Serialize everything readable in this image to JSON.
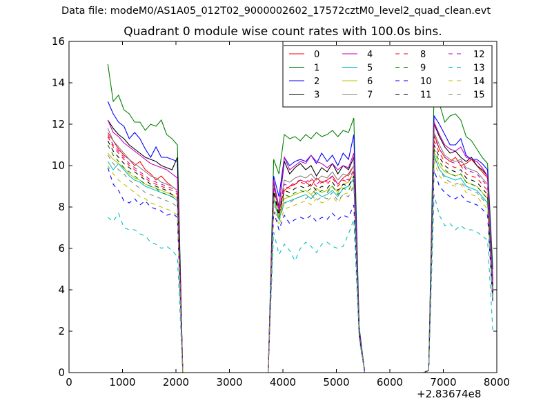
{
  "chart_data": {
    "type": "line",
    "suptitle": "Data file: modeM0/AS1A05_012T02_9000002602_17572cztM0_level2_quad_clean.evt",
    "title": "Quadrant 0 module wise count rates with 100.0s bins.",
    "xlabel": "",
    "ylabel": "",
    "x_offset_label": "+2.83674e8",
    "xlim": [
      0,
      8000
    ],
    "ylim": [
      0,
      16
    ],
    "x_ticks": [
      "0",
      "1000",
      "2000",
      "3000",
      "4000",
      "5000",
      "6000",
      "7000",
      "8000"
    ],
    "y_ticks": [
      "0",
      "2",
      "4",
      "6",
      "8",
      "10",
      "12",
      "14",
      "16"
    ],
    "legend_position": "top-right",
    "legend_columns": 4,
    "segment_times": [
      [
        727,
        827,
        927,
        1027,
        1127,
        1227,
        1327,
        1427,
        1527,
        1627,
        1727,
        1827,
        1927,
        2027,
        2127
      ],
      [
        3727,
        3827,
        3927,
        4027,
        4127,
        4227,
        4327,
        4427,
        4527,
        4627,
        4727,
        4827,
        4927,
        5027,
        5127,
        5227,
        5327,
        5427,
        5527
      ],
      [
        6727,
        6827,
        6927,
        7027,
        7127,
        7227,
        7327,
        7427,
        7527,
        7627,
        7727,
        7827,
        7927
      ]
    ],
    "zero_gaps": [
      [
        2127,
        3727
      ],
      [
        5527,
        6627
      ]
    ],
    "series": [
      {
        "name": "0",
        "color": "#ff0000",
        "dash": false,
        "segments": [
          [
            11.6,
            11.2,
            10.8,
            10.5,
            10.3,
            10.0,
            10.2,
            9.8,
            9.6,
            9.3,
            9.5,
            9.2,
            9.0,
            8.8,
            0.1
          ],
          [
            0.1,
            9.0,
            7.8,
            8.8,
            9.0,
            9.1,
            9.3,
            9.2,
            9.0,
            9.4,
            9.2,
            9.3,
            9.5,
            9.1,
            9.4,
            9.6,
            10.0,
            2.0,
            0.1
          ],
          [
            0.1,
            11.5,
            10.8,
            10.4,
            10.2,
            10.4,
            10.0,
            10.1,
            10.3,
            10.0,
            9.7,
            9.4,
            4.0
          ]
        ]
      },
      {
        "name": "1",
        "color": "#008000",
        "dash": false,
        "segments": [
          [
            14.9,
            13.1,
            13.4,
            12.7,
            12.5,
            12.1,
            12.1,
            11.7,
            12.0,
            11.9,
            12.2,
            11.5,
            11.3,
            11.0,
            0.1
          ],
          [
            0.1,
            10.3,
            9.6,
            11.5,
            11.3,
            11.4,
            11.2,
            11.5,
            11.3,
            11.6,
            11.4,
            11.5,
            11.7,
            11.4,
            11.7,
            11.6,
            12.3,
            2.2,
            0.1
          ],
          [
            0.1,
            13.6,
            13.0,
            12.1,
            12.4,
            12.5,
            12.2,
            11.4,
            11.2,
            10.8,
            10.4,
            10.1,
            5.0
          ]
        ]
      },
      {
        "name": "2",
        "color": "#0000ff",
        "dash": false,
        "segments": [
          [
            13.1,
            12.5,
            12.1,
            11.9,
            11.3,
            11.6,
            11.3,
            10.8,
            10.4,
            10.9,
            10.4,
            10.4,
            10.3,
            10.2,
            0.1
          ],
          [
            0.1,
            9.5,
            8.5,
            10.4,
            10.0,
            10.2,
            10.3,
            10.2,
            10.5,
            10.1,
            10.6,
            10.2,
            10.5,
            10.0,
            10.6,
            10.3,
            11.5,
            2.1,
            0.1
          ],
          [
            0.1,
            12.4,
            12.0,
            11.5,
            11.0,
            11.0,
            11.3,
            10.5,
            10.3,
            10.3,
            10.1,
            9.8,
            4.5
          ]
        ]
      },
      {
        "name": "3",
        "color": "#000000",
        "dash": false,
        "segments": [
          [
            12.2,
            11.8,
            11.5,
            11.3,
            11.0,
            10.8,
            10.6,
            10.4,
            10.3,
            10.2,
            10.0,
            9.9,
            9.8,
            10.4,
            0.1
          ],
          [
            0.1,
            9.2,
            8.0,
            10.2,
            9.6,
            9.9,
            10.1,
            9.8,
            10.0,
            9.5,
            9.9,
            9.7,
            10.1,
            9.6,
            10.0,
            9.8,
            10.4,
            1.9,
            0.1
          ],
          [
            0.1,
            12.0,
            11.4,
            10.9,
            10.6,
            10.7,
            10.4,
            10.2,
            10.4,
            10.0,
            9.8,
            9.5,
            4.2
          ]
        ]
      },
      {
        "name": "4",
        "color": "#bf00bf",
        "dash": false,
        "segments": [
          [
            12.2,
            11.6,
            11.4,
            11.1,
            10.9,
            10.7,
            10.5,
            10.3,
            10.1,
            10.0,
            9.9,
            9.8,
            9.6,
            9.4,
            0.1
          ],
          [
            0.1,
            9.3,
            7.9,
            10.4,
            9.8,
            10.0,
            10.2,
            10.1,
            10.5,
            10.2,
            10.1,
            9.9,
            10.1,
            9.8,
            10.0,
            9.9,
            10.6,
            2.0,
            0.1
          ],
          [
            0.1,
            12.1,
            11.5,
            11.0,
            10.8,
            10.7,
            10.9,
            10.4,
            10.3,
            10.2,
            9.9,
            9.5,
            4.3
          ]
        ]
      },
      {
        "name": "5",
        "color": "#00bfbf",
        "dash": false,
        "segments": [
          [
            10.2,
            9.8,
            10.1,
            9.8,
            9.5,
            9.3,
            9.2,
            9.0,
            8.9,
            8.8,
            8.7,
            8.6,
            8.5,
            8.3,
            0.1
          ],
          [
            0.1,
            8.4,
            7.4,
            8.2,
            8.3,
            8.4,
            8.5,
            8.6,
            8.4,
            8.7,
            8.5,
            8.6,
            8.8,
            8.5,
            8.9,
            9.0,
            9.4,
            1.8,
            0.1
          ],
          [
            0.1,
            10.5,
            9.8,
            9.5,
            9.4,
            9.3,
            9.4,
            9.0,
            8.9,
            8.8,
            8.5,
            8.2,
            3.5
          ]
        ]
      },
      {
        "name": "6",
        "color": "#bfbf00",
        "dash": false,
        "segments": [
          [
            10.6,
            10.3,
            10.1,
            9.9,
            9.6,
            9.4,
            9.3,
            9.1,
            9.0,
            8.9,
            8.8,
            8.7,
            8.6,
            8.4,
            0.1
          ],
          [
            0.1,
            8.6,
            7.5,
            8.4,
            8.5,
            8.6,
            8.7,
            8.8,
            8.6,
            8.9,
            8.7,
            8.8,
            9.0,
            8.7,
            9.1,
            9.2,
            9.7,
            1.8,
            0.1
          ],
          [
            0.1,
            10.7,
            10.0,
            9.7,
            9.6,
            9.5,
            9.6,
            9.2,
            9.1,
            9.0,
            8.7,
            8.4,
            3.6
          ]
        ]
      },
      {
        "name": "7",
        "color": "#808080",
        "dash": false,
        "segments": [
          [
            11.8,
            11.2,
            10.9,
            10.6,
            10.3,
            10.1,
            9.9,
            9.7,
            9.5,
            9.4,
            9.2,
            9.1,
            9.0,
            8.8,
            0.1
          ],
          [
            0.1,
            9.0,
            7.8,
            9.3,
            9.2,
            9.4,
            9.5,
            9.4,
            9.6,
            9.3,
            9.5,
            9.4,
            9.7,
            9.3,
            9.6,
            9.5,
            10.0,
            1.9,
            0.1
          ],
          [
            0.1,
            11.6,
            11.0,
            10.5,
            10.3,
            10.2,
            10.3,
            9.9,
            9.8,
            9.7,
            9.4,
            9.1,
            3.9
          ]
        ]
      },
      {
        "name": "8",
        "color": "#ff0000",
        "dash": true,
        "segments": [
          [
            11.4,
            10.9,
            10.6,
            10.3,
            10.0,
            9.8,
            9.6,
            9.4,
            9.2,
            9.1,
            9.0,
            8.9,
            8.8,
            8.6,
            0.1
          ],
          [
            0.1,
            8.9,
            7.7,
            9.0,
            8.9,
            9.1,
            9.2,
            9.1,
            9.3,
            9.0,
            9.2,
            9.1,
            9.4,
            9.0,
            9.3,
            9.2,
            9.7,
            1.9,
            0.1
          ],
          [
            0.1,
            11.2,
            10.6,
            10.2,
            10.0,
            9.9,
            10.0,
            9.6,
            9.5,
            9.4,
            9.1,
            8.8,
            3.8
          ]
        ]
      },
      {
        "name": "9",
        "color": "#008000",
        "dash": true,
        "segments": [
          [
            11.0,
            10.5,
            10.2,
            9.9,
            9.7,
            9.5,
            9.3,
            9.1,
            9.0,
            8.9,
            8.7,
            8.6,
            8.5,
            8.3,
            0.1
          ],
          [
            0.1,
            8.7,
            7.5,
            8.6,
            8.5,
            8.7,
            8.8,
            8.7,
            8.9,
            8.6,
            8.8,
            8.7,
            9.0,
            8.6,
            8.9,
            8.8,
            9.3,
            1.8,
            0.1
          ],
          [
            0.1,
            10.8,
            10.2,
            9.8,
            9.6,
            9.5,
            9.6,
            9.2,
            9.1,
            9.0,
            8.7,
            8.4,
            3.7
          ]
        ]
      },
      {
        "name": "10",
        "color": "#0000ff",
        "dash": true,
        "segments": [
          [
            9.9,
            9.1,
            8.8,
            8.3,
            8.2,
            8.4,
            8.1,
            8.3,
            8.0,
            7.9,
            7.8,
            7.6,
            7.7,
            7.5,
            0.1
          ],
          [
            0.1,
            7.8,
            6.9,
            7.6,
            7.2,
            7.4,
            7.5,
            7.4,
            7.6,
            7.3,
            7.5,
            7.4,
            7.7,
            7.4,
            7.6,
            7.5,
            8.1,
            1.7,
            0.1
          ],
          [
            0.1,
            9.8,
            9.0,
            8.7,
            8.5,
            8.4,
            8.6,
            8.3,
            8.2,
            8.1,
            7.9,
            7.6,
            3.3
          ]
        ]
      },
      {
        "name": "11",
        "color": "#000000",
        "dash": true,
        "segments": [
          [
            11.2,
            10.7,
            10.4,
            10.1,
            9.9,
            9.7,
            9.5,
            9.3,
            9.1,
            9.0,
            8.9,
            8.8,
            8.6,
            8.5,
            0.1
          ],
          [
            0.1,
            8.8,
            7.6,
            8.8,
            8.7,
            8.9,
            9.0,
            8.9,
            9.1,
            8.8,
            9.0,
            8.9,
            9.2,
            8.8,
            9.1,
            9.0,
            9.5,
            1.8,
            0.1
          ],
          [
            0.1,
            11.0,
            10.4,
            10.0,
            9.8,
            9.7,
            9.8,
            9.4,
            9.3,
            9.2,
            8.9,
            8.6,
            3.8
          ]
        ]
      },
      {
        "name": "12",
        "color": "#bf00bf",
        "dash": true,
        "segments": [
          [
            11.5,
            11.0,
            10.7,
            10.4,
            10.1,
            9.9,
            9.7,
            9.5,
            9.3,
            9.2,
            9.1,
            9.0,
            8.9,
            8.7,
            0.1
          ],
          [
            0.1,
            9.0,
            7.8,
            9.1,
            9.0,
            9.2,
            9.3,
            9.2,
            9.4,
            9.1,
            9.3,
            9.2,
            9.5,
            9.1,
            9.4,
            9.3,
            9.8,
            1.9,
            0.1
          ],
          [
            0.1,
            11.4,
            10.8,
            10.4,
            10.2,
            10.1,
            10.2,
            9.8,
            9.7,
            9.6,
            9.3,
            9.0,
            3.9
          ]
        ]
      },
      {
        "name": "13",
        "color": "#00bfbf",
        "dash": true,
        "segments": [
          [
            7.5,
            7.3,
            7.7,
            7.0,
            6.9,
            6.9,
            6.7,
            6.6,
            6.3,
            6.2,
            6.0,
            6.1,
            5.9,
            5.6,
            0.1
          ],
          [
            0.1,
            6.8,
            5.7,
            6.2,
            5.9,
            5.4,
            6.0,
            6.3,
            6.1,
            5.8,
            6.2,
            6.3,
            6.1,
            6.0,
            6.1,
            6.7,
            7.4,
            1.6,
            0.1
          ],
          [
            0.1,
            8.6,
            7.6,
            7.1,
            7.2,
            6.9,
            7.1,
            6.9,
            6.9,
            6.8,
            6.6,
            6.4,
            2.0
          ]
        ]
      },
      {
        "name": "14",
        "color": "#bfbf00",
        "dash": true,
        "segments": [
          [
            10.0,
            9.6,
            9.3,
            9.1,
            8.9,
            8.7,
            8.5,
            8.4,
            8.2,
            8.1,
            8.0,
            7.9,
            7.8,
            7.6,
            0.1
          ],
          [
            0.1,
            8.1,
            7.1,
            7.9,
            8.0,
            8.1,
            8.2,
            8.3,
            8.1,
            8.4,
            8.2,
            8.3,
            8.5,
            8.2,
            8.6,
            8.7,
            9.0,
            1.7,
            0.1
          ],
          [
            0.1,
            10.2,
            9.5,
            9.2,
            9.1,
            9.0,
            9.1,
            8.7,
            8.6,
            8.5,
            8.2,
            7.9,
            3.4
          ]
        ]
      },
      {
        "name": "15",
        "color": "#808080",
        "dash": true,
        "segments": [
          [
            10.5,
            10.1,
            9.8,
            9.6,
            9.3,
            9.1,
            8.9,
            8.7,
            8.6,
            8.5,
            8.4,
            8.3,
            8.2,
            8.0,
            0.1
          ],
          [
            0.1,
            8.4,
            7.3,
            8.2,
            8.2,
            8.4,
            8.5,
            8.4,
            8.6,
            8.3,
            8.5,
            8.4,
            8.7,
            8.3,
            8.6,
            8.5,
            9.0,
            1.8,
            0.1
          ],
          [
            0.1,
            10.4,
            9.8,
            9.4,
            9.2,
            9.1,
            9.2,
            8.9,
            8.8,
            8.7,
            8.4,
            8.1,
            3.5
          ]
        ]
      }
    ]
  }
}
